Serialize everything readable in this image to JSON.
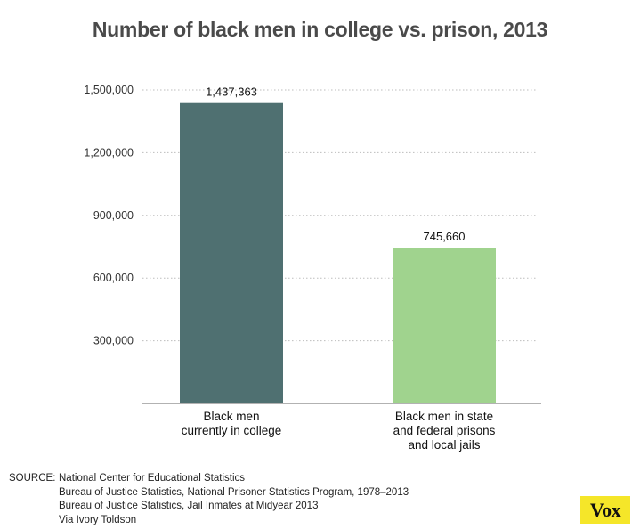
{
  "chart_data": {
    "type": "bar",
    "title": "Number of black men in college vs. prison, 2013",
    "categories": [
      [
        "Black men",
        "currently in college"
      ],
      [
        "Black men in state",
        "and federal prisons",
        "and local jails"
      ]
    ],
    "values": [
      1437363,
      745660
    ],
    "value_labels": [
      "1,437,363",
      "745,660"
    ],
    "colors": [
      "#4f7071",
      "#a0d38e"
    ],
    "ylim": [
      0,
      1500000
    ],
    "yticks": [
      300000,
      600000,
      900000,
      1200000,
      1500000
    ],
    "ytick_labels": [
      "300,000",
      "600,000",
      "900,000",
      "1,200,000",
      "1,500,000"
    ],
    "grid": true,
    "xlabel": "",
    "ylabel": ""
  },
  "source": {
    "label": "SOURCE:",
    "lines": [
      "National Center for Educational Statistics",
      "Bureau of Justice Statistics, National Prisoner Statistics Program, 1978–2013",
      "Bureau of Justice Statistics, Jail Inmates at Midyear 2013",
      "Via Ivory Toldson"
    ]
  },
  "logo_text": "Vox"
}
